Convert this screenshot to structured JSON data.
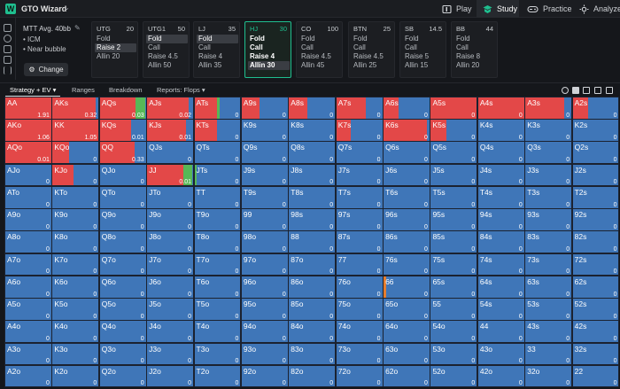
{
  "app": {
    "name": "GTO Wizard"
  },
  "nav": [
    {
      "label": "Play",
      "icon": "play-icon",
      "active": false
    },
    {
      "label": "Study",
      "icon": "study-icon",
      "active": true
    },
    {
      "label": "Practice",
      "icon": "gamepad-icon",
      "active": false
    },
    {
      "label": "Analyze",
      "icon": "analyze-icon",
      "active": false
    }
  ],
  "mtt": {
    "title": "MTT Avg. 40bb",
    "lines": [
      "• ICM",
      "• Near bubble"
    ],
    "change_label": "Change"
  },
  "positions": [
    {
      "name": "UTG",
      "stack": "20",
      "actions": [
        "Fold",
        "Raise 2",
        "Allin 20"
      ],
      "selected": 1
    },
    {
      "name": "UTG1",
      "stack": "50",
      "actions": [
        "Fold",
        "Call",
        "Raise 4.5",
        "Allin 50"
      ],
      "selected": 0
    },
    {
      "name": "LJ",
      "stack": "35",
      "actions": [
        "Fold",
        "Call",
        "Raise 4",
        "Allin 35"
      ],
      "selected": 0
    },
    {
      "name": "HJ",
      "stack": "30",
      "actions": [
        "Fold",
        "Call",
        "Raise 4",
        "Allin 30"
      ],
      "selected": 3,
      "active": true
    },
    {
      "name": "CO",
      "stack": "100",
      "actions": [
        "Fold",
        "Call",
        "Raise 4.5",
        "Allin 45"
      ],
      "selected": -1
    },
    {
      "name": "BTN",
      "stack": "25",
      "actions": [
        "Fold",
        "Call",
        "Raise 4.5",
        "Allin 25"
      ],
      "selected": -1
    },
    {
      "name": "SB",
      "stack": "14.5",
      "actions": [
        "Fold",
        "Call",
        "Raise 5",
        "Allin 15"
      ],
      "selected": -1
    },
    {
      "name": "BB",
      "stack": "44",
      "actions": [
        "Fold",
        "Call",
        "Raise 8",
        "Allin 20"
      ],
      "selected": -1
    }
  ],
  "toolbar": {
    "tabs": [
      {
        "label": "Strategy + EV  ▾",
        "active": true
      },
      {
        "label": "Ranges",
        "active": false
      },
      {
        "label": "Breakdown",
        "active": false
      },
      {
        "label": "Reports: Flops  ▾",
        "active": false
      }
    ]
  },
  "colors": {
    "fold": "#3f76b8",
    "allin": "#e34848",
    "call": "#57b857",
    "raise": "#e57d2e"
  },
  "ranks": [
    "A",
    "K",
    "Q",
    "J",
    "T",
    "9",
    "8",
    "7",
    "6",
    "5",
    "4",
    "3",
    "2"
  ],
  "hand_overrides": {
    "AA": {
      "allin": 1.0,
      "ev": "1.91"
    },
    "AKs": {
      "allin": 0.94,
      "ev": "0.32"
    },
    "AQs": {
      "allin": 0.78,
      "call": 0.2,
      "ev": "0.03"
    },
    "AJs": {
      "allin": 0.9,
      "ev": "0.02"
    },
    "ATs": {
      "allin": 0.5,
      "call": 0.04
    },
    "A9s": {
      "allin": 0.38
    },
    "A8s": {
      "allin": 0.4
    },
    "A7s": {
      "allin": 0.65
    },
    "A6s": {
      "allin": 0.32
    },
    "A5s": {
      "allin": 1.0
    },
    "A4s": {
      "allin": 1.0
    },
    "A3s": {
      "allin": 0.85
    },
    "A2s": {
      "allin": 0.33
    },
    "AKo": {
      "allin": 1.0,
      "ev": "1.06"
    },
    "KK": {
      "allin": 1.0,
      "ev": "1.05"
    },
    "KQs": {
      "allin": 0.68,
      "ev": "0.01"
    },
    "KJs": {
      "allin": 0.84,
      "ev": "0.01"
    },
    "KTs": {
      "allin": 0.5
    },
    "K7s": {
      "allin": 0.32
    },
    "K6s": {
      "allin": 0.95
    },
    "K5s": {
      "allin": 0.33
    },
    "AQo": {
      "allin": 1.0,
      "ev": "0.01"
    },
    "KQo": {
      "allin": 0.35
    },
    "QQ": {
      "allin": 0.75,
      "ev": "0.33"
    },
    "KJo": {
      "allin": 0.45
    },
    "JJ": {
      "allin": 0.78,
      "call": 0.2,
      "ev": "0.01"
    },
    "JTs": {
      "call": 0.05
    },
    "66": {
      "raise": 0.05
    }
  }
}
